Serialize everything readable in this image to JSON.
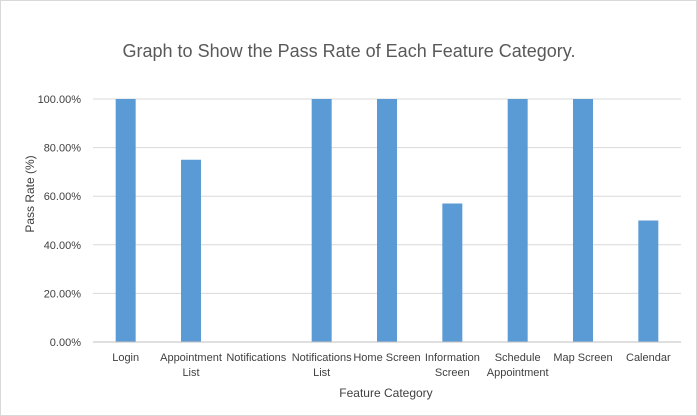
{
  "chart_data": {
    "type": "bar",
    "title": "Graph to Show the Pass Rate of Each Feature Category.",
    "xlabel": "Feature Category",
    "ylabel": "Pass Rate (%)",
    "categories": [
      "Login",
      "Appointment List",
      "Notifications",
      "Notifications List",
      "Home Screen",
      "Information Screen",
      "Schedule Appointment",
      "Map Screen",
      "Calendar"
    ],
    "category_lines": [
      [
        "Login"
      ],
      [
        "Appointment",
        "List"
      ],
      [
        "Notifications"
      ],
      [
        "Notifications",
        "List"
      ],
      [
        "Home Screen"
      ],
      [
        "Information",
        "Screen"
      ],
      [
        "Schedule",
        "Appointment"
      ],
      [
        "Map Screen"
      ],
      [
        "Calendar"
      ]
    ],
    "values": [
      100,
      75,
      0,
      100,
      100,
      57,
      100,
      100,
      50
    ],
    "ylim": [
      0,
      100
    ],
    "yticks": [
      0,
      20,
      40,
      60,
      80,
      100
    ],
    "ytick_labels": [
      "0.00%",
      "20.00%",
      "40.00%",
      "60.00%",
      "80.00%",
      "100.00%"
    ],
    "grid": true,
    "legend": "none",
    "colors": {
      "bar": "#5b9bd5",
      "grid": "#d9d9d9",
      "axis": "#bfbfbf"
    }
  }
}
